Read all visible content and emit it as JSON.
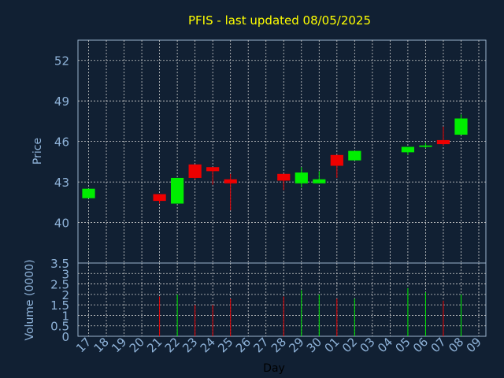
{
  "chart_data": {
    "type": "candlestick",
    "title": "PFIS - last updated 08/05/2025",
    "xlabel": "Day",
    "price_panel": {
      "ylabel": "Price",
      "ylim": [
        37.0,
        53.5
      ],
      "yticks": [
        40,
        43,
        46,
        49,
        52
      ]
    },
    "volume_panel": {
      "ylabel": "Volume (0000)",
      "ylim": [
        0,
        3.5
      ],
      "yticks": [
        0,
        0.5,
        1,
        1.5,
        2,
        2.5,
        3,
        3.5
      ],
      "yticklabels": [
        "0",
        "0.5",
        "1",
        "1.5",
        "2",
        "2.5",
        "3",
        "3.5"
      ]
    },
    "x_ticks": [
      "17",
      "18",
      "19",
      "20",
      "21",
      "22",
      "23",
      "24",
      "25",
      "26",
      "27",
      "28",
      "29",
      "30",
      "01",
      "02",
      "03",
      "04",
      "05",
      "06",
      "07",
      "08",
      "09"
    ],
    "grid": true,
    "colors": {
      "up": "#00ee00",
      "down": "#ee0000",
      "title": "#ffff00",
      "axis_text": "#8fb3d9",
      "grid": "#cccccc",
      "plot_bg": "#112033",
      "frame": "#9ab3cc"
    },
    "candles": [
      {
        "day": "17",
        "open": 41.8,
        "high": 42.5,
        "low": 41.8,
        "close": 42.5,
        "volume": 0.0
      },
      {
        "day": "21",
        "open": 42.1,
        "high": 42.1,
        "low": 41.4,
        "close": 41.6,
        "volume": 1.9
      },
      {
        "day": "22",
        "open": 41.4,
        "high": 43.3,
        "low": 41.4,
        "close": 43.3,
        "volume": 2.0
      },
      {
        "day": "23",
        "open": 44.3,
        "high": 44.3,
        "low": 43.2,
        "close": 43.3,
        "volume": 1.5
      },
      {
        "day": "24",
        "open": 44.1,
        "high": 44.1,
        "low": 42.8,
        "close": 43.8,
        "volume": 1.5
      },
      {
        "day": "25",
        "open": 43.2,
        "high": 43.6,
        "low": 40.9,
        "close": 42.9,
        "volume": 1.8
      },
      {
        "day": "28",
        "open": 43.6,
        "high": 43.6,
        "low": 42.4,
        "close": 43.1,
        "volume": 1.9
      },
      {
        "day": "29",
        "open": 42.9,
        "high": 44.1,
        "low": 42.6,
        "close": 43.7,
        "volume": 2.2
      },
      {
        "day": "30",
        "open": 42.9,
        "high": 43.8,
        "low": 42.9,
        "close": 43.2,
        "volume": 2.0
      },
      {
        "day": "01",
        "open": 45.0,
        "high": 45.0,
        "low": 43.3,
        "close": 44.2,
        "volume": 1.8
      },
      {
        "day": "02",
        "open": 44.6,
        "high": 45.3,
        "low": 44.6,
        "close": 45.3,
        "volume": 1.8
      },
      {
        "day": "05",
        "open": 45.2,
        "high": 45.6,
        "low": 45.0,
        "close": 45.6,
        "volume": 2.3
      },
      {
        "day": "06",
        "open": 45.6,
        "high": 45.9,
        "low": 45.5,
        "close": 45.7,
        "volume": 2.1
      },
      {
        "day": "07",
        "open": 46.1,
        "high": 47.1,
        "low": 45.7,
        "close": 45.8,
        "volume": 1.7
      },
      {
        "day": "08",
        "open": 46.5,
        "high": 48.0,
        "low": 46.5,
        "close": 47.7,
        "volume": 2.0
      }
    ]
  }
}
